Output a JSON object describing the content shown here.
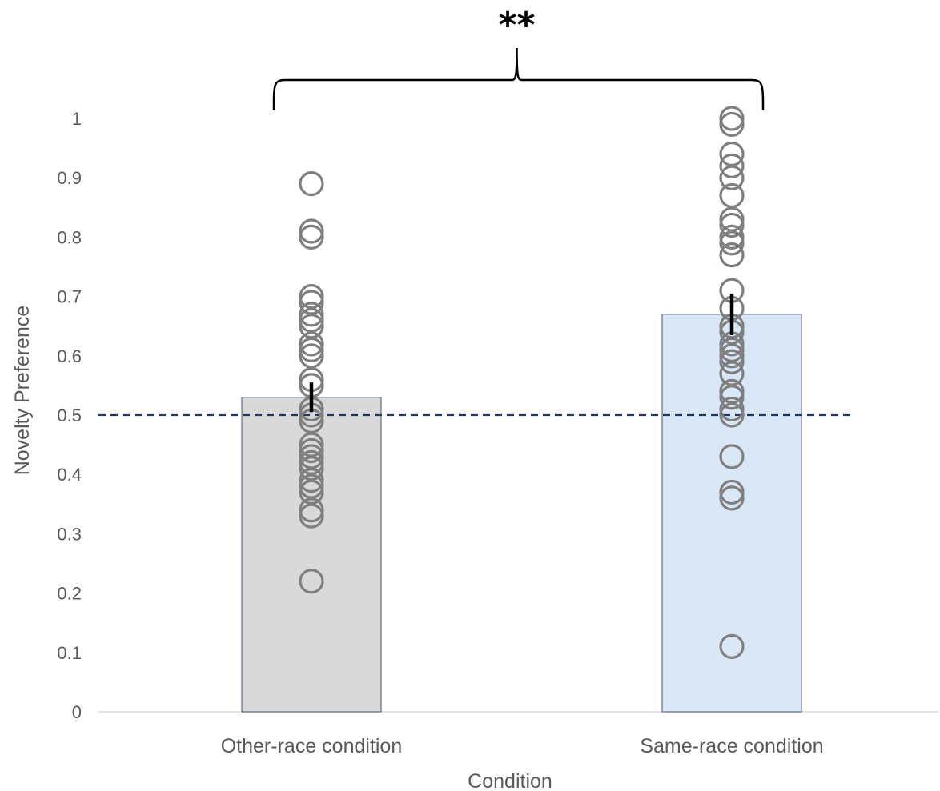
{
  "chart_data": {
    "type": "bar",
    "title": "",
    "xlabel": "Condition",
    "ylabel": "Novelty Preference",
    "ylim": [
      0,
      1
    ],
    "yticks": [
      0,
      0.1,
      0.2,
      0.3,
      0.4,
      0.5,
      0.6,
      0.7,
      0.8,
      0.9,
      1
    ],
    "ytick_labels": [
      "0",
      "0.1",
      "0.2",
      "0.3",
      "0.4",
      "0.5",
      "0.6",
      "0.7",
      "0.8",
      "0.9",
      "1"
    ],
    "grid": false,
    "legend": "none",
    "categories": [
      "Other-race condition",
      "Same-race condition"
    ],
    "values": [
      0.53,
      0.67
    ],
    "bar_colors": [
      "#d9d9d9",
      "#dae7f6"
    ],
    "bar_edge_color": "#44546a",
    "error_bars": [
      {
        "low": 0.505,
        "high": 0.555
      },
      {
        "low": 0.635,
        "high": 0.705
      }
    ],
    "individual_points": [
      [
        0.89,
        0.81,
        0.8,
        0.7,
        0.69,
        0.67,
        0.66,
        0.65,
        0.62,
        0.61,
        0.6,
        0.56,
        0.55,
        0.51,
        0.5,
        0.49,
        0.45,
        0.44,
        0.43,
        0.42,
        0.41,
        0.39,
        0.38,
        0.37,
        0.34,
        0.33,
        0.22
      ],
      [
        1.0,
        0.99,
        0.94,
        0.92,
        0.9,
        0.87,
        0.83,
        0.82,
        0.8,
        0.79,
        0.77,
        0.71,
        0.68,
        0.65,
        0.64,
        0.62,
        0.61,
        0.6,
        0.59,
        0.57,
        0.54,
        0.53,
        0.51,
        0.5,
        0.43,
        0.37,
        0.36,
        0.11
      ]
    ],
    "point_color": "#7f7f7f",
    "reference_line": {
      "y": 0.5,
      "style": "dashed",
      "color": "#1f3864"
    },
    "significance": {
      "label": "**",
      "between": [
        0,
        1
      ]
    }
  }
}
